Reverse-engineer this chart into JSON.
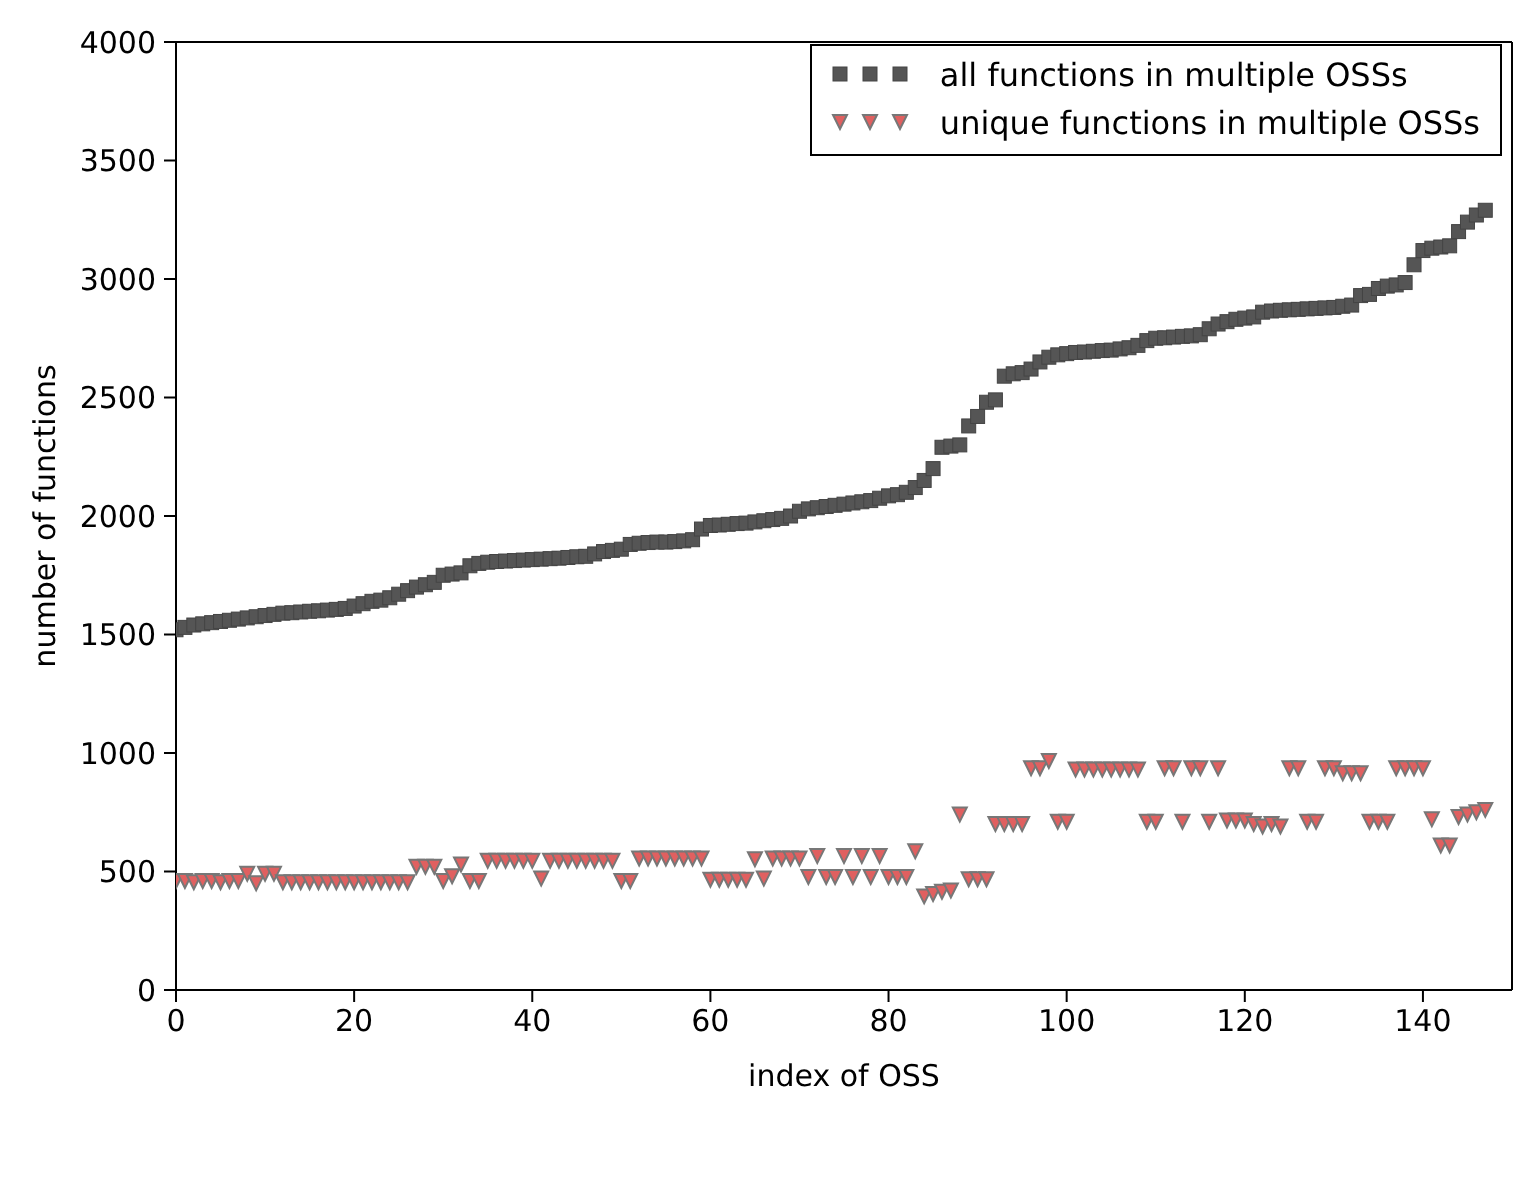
{
  "chart_data": {
    "type": "scatter",
    "xlabel": "index of OSS",
    "ylabel": "number of functions",
    "x": [
      0,
      1,
      2,
      3,
      4,
      5,
      6,
      7,
      8,
      9,
      10,
      11,
      12,
      13,
      14,
      15,
      16,
      17,
      18,
      19,
      20,
      21,
      22,
      23,
      24,
      25,
      26,
      27,
      28,
      29,
      30,
      31,
      32,
      33,
      34,
      35,
      36,
      37,
      38,
      39,
      40,
      41,
      42,
      43,
      44,
      45,
      46,
      47,
      48,
      49,
      50,
      51,
      52,
      53,
      54,
      55,
      56,
      57,
      58,
      59,
      60,
      61,
      62,
      63,
      64,
      65,
      66,
      67,
      68,
      69,
      70,
      71,
      72,
      73,
      74,
      75,
      76,
      77,
      78,
      79,
      80,
      81,
      82,
      83,
      84,
      85,
      86,
      87,
      88,
      89,
      90,
      91,
      92,
      93,
      94,
      95,
      96,
      97,
      98,
      99,
      100,
      101,
      102,
      103,
      104,
      105,
      106,
      107,
      108,
      109,
      110,
      111,
      112,
      113,
      114,
      115,
      116,
      117,
      118,
      119,
      120,
      121,
      122,
      123,
      124,
      125,
      126,
      127,
      128,
      129,
      130,
      131,
      132,
      133,
      134,
      135,
      136,
      137,
      138,
      139,
      140,
      141,
      142,
      143,
      144,
      145,
      146,
      147
    ],
    "series": [
      {
        "name": "all functions in multiple OSSs",
        "color": "#555555",
        "marker": "square",
        "values": [
          1520,
          1530,
          1540,
          1545,
          1550,
          1555,
          1560,
          1565,
          1570,
          1575,
          1580,
          1585,
          1590,
          1592,
          1595,
          1598,
          1600,
          1603,
          1606,
          1610,
          1620,
          1630,
          1640,
          1645,
          1655,
          1670,
          1685,
          1700,
          1710,
          1720,
          1750,
          1755,
          1760,
          1790,
          1800,
          1805,
          1808,
          1810,
          1812,
          1814,
          1816,
          1818,
          1820,
          1822,
          1825,
          1828,
          1830,
          1840,
          1850,
          1855,
          1860,
          1880,
          1885,
          1888,
          1890,
          1890,
          1892,
          1895,
          1900,
          1945,
          1960,
          1962,
          1965,
          1968,
          1970,
          1975,
          1980,
          1985,
          1990,
          2000,
          2020,
          2030,
          2035,
          2040,
          2045,
          2050,
          2055,
          2060,
          2065,
          2075,
          2085,
          2090,
          2100,
          2120,
          2150,
          2200,
          2290,
          2295,
          2300,
          2380,
          2420,
          2480,
          2490,
          2590,
          2600,
          2605,
          2620,
          2650,
          2670,
          2680,
          2685,
          2690,
          2692,
          2695,
          2698,
          2700,
          2705,
          2710,
          2720,
          2740,
          2750,
          2752,
          2755,
          2758,
          2760,
          2765,
          2790,
          2810,
          2820,
          2830,
          2835,
          2840,
          2860,
          2865,
          2868,
          2870,
          2872,
          2874,
          2876,
          2878,
          2880,
          2885,
          2890,
          2930,
          2935,
          2960,
          2970,
          2975,
          2985,
          3060,
          3120,
          3130,
          3135,
          3140,
          3200,
          3240,
          3270,
          3290
        ]
      },
      {
        "name": "unique functions in multiple OSSs",
        "color": "#e06060",
        "marker": "triangle",
        "values": [
          460,
          460,
          455,
          460,
          460,
          455,
          460,
          460,
          490,
          450,
          490,
          490,
          455,
          455,
          455,
          455,
          455,
          455,
          455,
          455,
          455,
          455,
          455,
          455,
          455,
          455,
          455,
          520,
          520,
          520,
          460,
          480,
          530,
          460,
          460,
          545,
          545,
          545,
          545,
          545,
          545,
          470,
          545,
          545,
          545,
          545,
          545,
          545,
          545,
          545,
          460,
          460,
          555,
          555,
          555,
          555,
          555,
          555,
          555,
          555,
          465,
          465,
          465,
          465,
          465,
          552,
          470,
          555,
          555,
          555,
          555,
          477,
          565,
          477,
          477,
          565,
          477,
          565,
          477,
          565,
          477,
          477,
          477,
          585,
          395,
          405,
          415,
          420,
          740,
          467,
          467,
          467,
          700,
          700,
          700,
          700,
          936,
          936,
          966,
          710,
          710,
          930,
          930,
          930,
          930,
          930,
          930,
          930,
          930,
          710,
          710,
          936,
          936,
          710,
          936,
          936,
          710,
          936,
          715,
          715,
          715,
          700,
          690,
          700,
          690,
          936,
          936,
          710,
          710,
          936,
          936,
          915,
          915,
          915,
          710,
          710,
          710,
          936,
          936,
          936,
          936,
          720,
          610,
          610,
          730,
          740,
          750,
          760
        ]
      }
    ],
    "xlim": [
      0,
      150
    ],
    "xticks": [
      0,
      20,
      40,
      60,
      80,
      100,
      120,
      140
    ],
    "ylim": [
      0,
      4000
    ],
    "yticks": [
      0,
      500,
      1000,
      1500,
      2000,
      2500,
      3000,
      3500,
      4000
    ],
    "grid": false,
    "legend": "top right"
  }
}
